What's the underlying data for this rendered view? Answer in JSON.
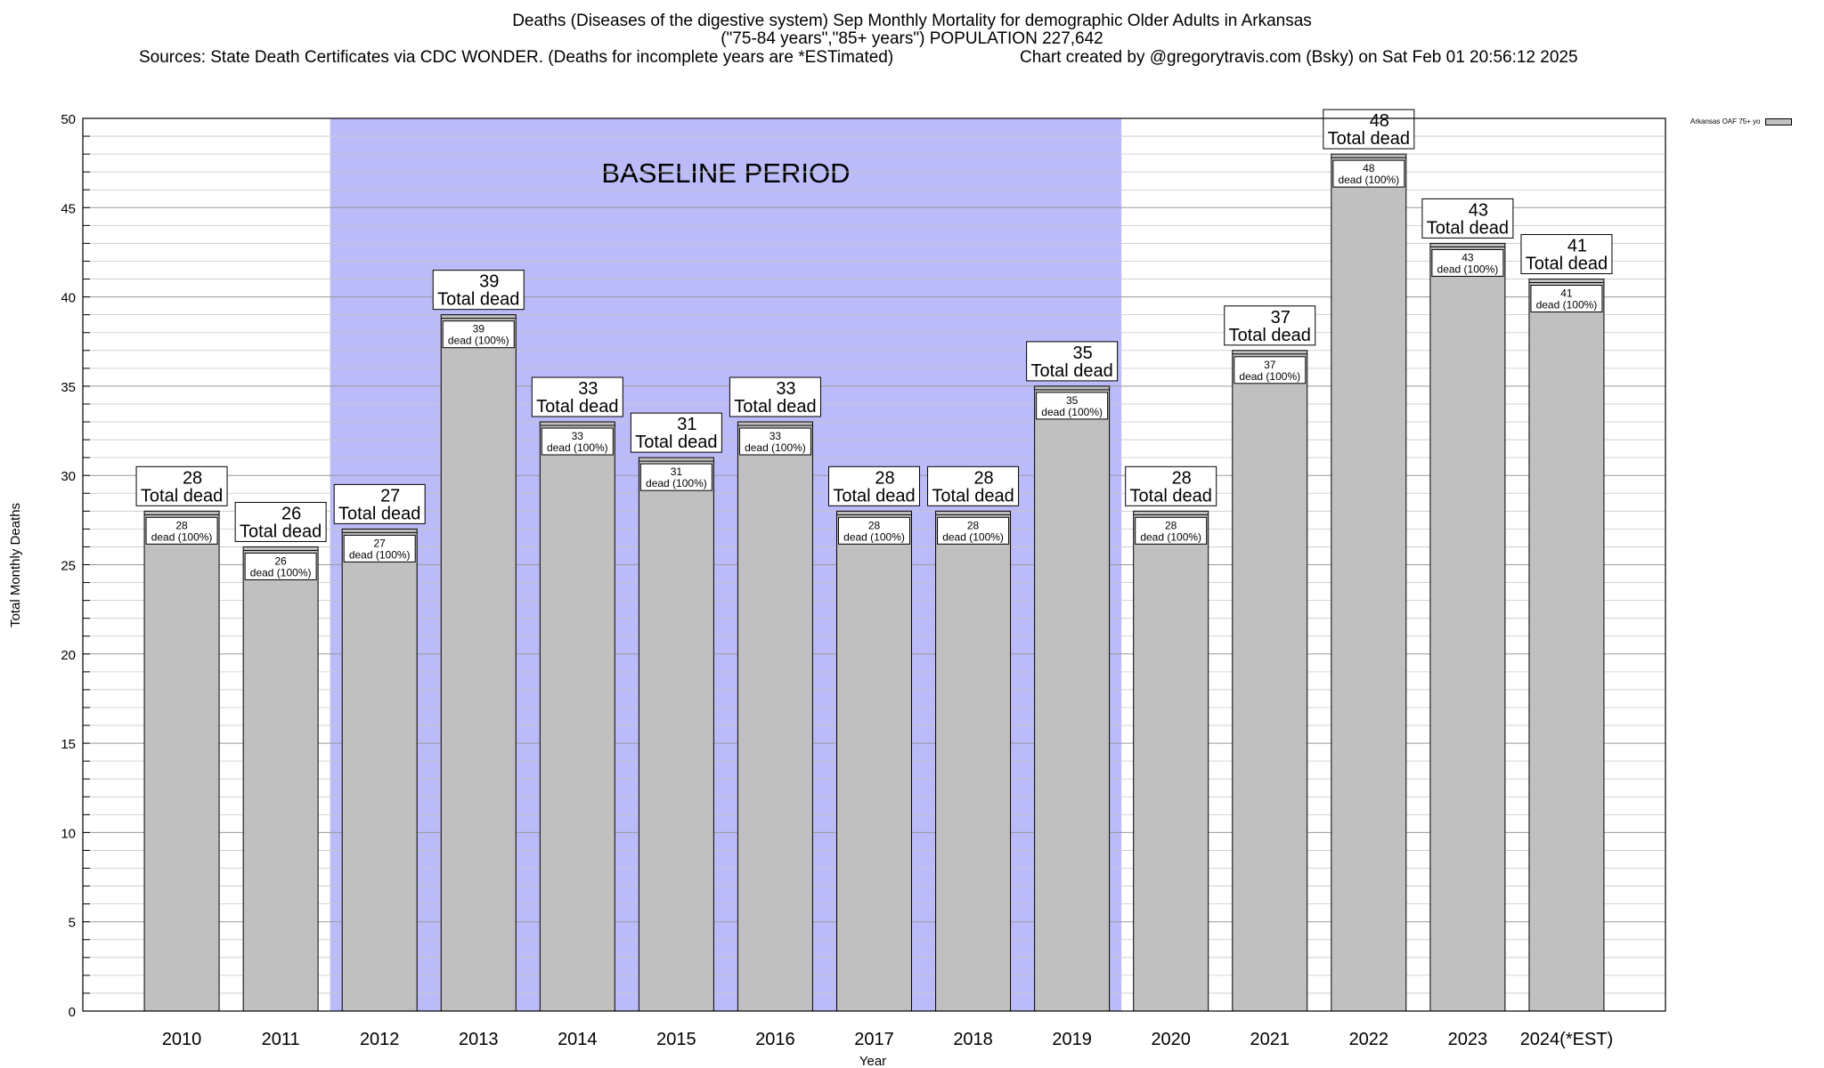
{
  "title": {
    "line1": "Deaths (Diseases of the digestive system) Sep Monthly Mortality for demographic Older Adults in Arkansas",
    "line2": "(\"75-84 years\",\"85+ years\") POPULATION 227,642",
    "sources": "Sources: State Death Certificates via CDC WONDER. (Deaths for incomplete years are *ESTimated)",
    "credit": "Chart created by @gregorytravis.com (Bsky) on Sat Feb 01 20:56:12 2025"
  },
  "legend": {
    "label": "Arkansas OAF 75+ yo"
  },
  "chart_data": {
    "type": "bar",
    "categories": [
      "2010",
      "2011",
      "2012",
      "2013",
      "2014",
      "2015",
      "2016",
      "2017",
      "2018",
      "2019",
      "2020",
      "2021",
      "2022",
      "2023",
      "2024(*EST)"
    ],
    "values": [
      28,
      26,
      27,
      39,
      33,
      31,
      33,
      28,
      28,
      35,
      28,
      37,
      48,
      43,
      41
    ],
    "xlabel": "Year",
    "ylabel": "Total Monthly Deaths",
    "ylim": [
      0,
      50
    ],
    "yticks": [
      0,
      5,
      10,
      15,
      20,
      25,
      30,
      35,
      40,
      45,
      50
    ],
    "grid": true,
    "legend_position": "top-right",
    "bar_color": "#c0c0c0",
    "baseline_period": {
      "label": "BASELINE PERIOD",
      "start": "2012",
      "end": "2019",
      "color": "#bbbbf9"
    },
    "top_label_suffix": "Total dead",
    "inner_label_suffix": "dead (100%)"
  }
}
